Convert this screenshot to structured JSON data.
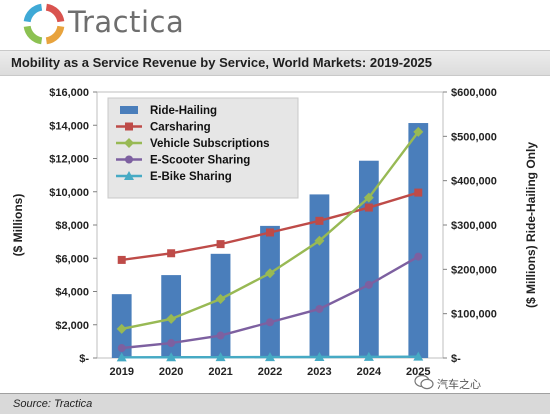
{
  "header": {
    "logo_text": "Tractica",
    "logo_colors": [
      "#e8a33d",
      "#8cc152",
      "#3fa9d6",
      "#d9534f"
    ]
  },
  "title": "Mobility as a Service Revenue by Service, World Markets: 2019-2025",
  "source": "Source: Tractica",
  "watermark": "汽车之心",
  "chart_data": {
    "type": "bar",
    "title": "Mobility as a Service Revenue by Service, World Markets: 2019-2025",
    "categories": [
      "2019",
      "2020",
      "2021",
      "2022",
      "2023",
      "2024",
      "2025"
    ],
    "left_axis": {
      "label": "($ Millions)",
      "ylim": [
        0,
        16000
      ],
      "ticks": [
        "$-",
        "$2,000",
        "$4,000",
        "$6,000",
        "$8,000",
        "$10,000",
        "$12,000",
        "$14,000",
        "$16,000"
      ]
    },
    "right_axis": {
      "label": "($ Millions) Ride-Hailing Only",
      "ylim": [
        0,
        600000
      ],
      "ticks": [
        "$-",
        "$100,000",
        "$200,000",
        "$300,000",
        "$400,000",
        "$500,000",
        "$600,000"
      ]
    },
    "series": [
      {
        "name": "Ride-Hailing",
        "type": "bar",
        "axis": "right",
        "color": "#4a7ebb",
        "values": [
          144000,
          187000,
          235000,
          298000,
          369000,
          445000,
          530000
        ]
      },
      {
        "name": "Carsharing",
        "type": "line",
        "axis": "left",
        "color": "#be4b48",
        "marker": "square",
        "values": [
          5900,
          6300,
          6850,
          7550,
          8250,
          9050,
          9950
        ]
      },
      {
        "name": "Vehicle Subscriptions",
        "type": "line",
        "axis": "left",
        "color": "#98b954",
        "marker": "diamond",
        "values": [
          1750,
          2350,
          3550,
          5100,
          7050,
          9650,
          13600
        ]
      },
      {
        "name": "E-Scooter Sharing",
        "type": "line",
        "axis": "left",
        "color": "#7d60a0",
        "marker": "circle",
        "values": [
          600,
          900,
          1350,
          2150,
          2950,
          4400,
          6100
        ]
      },
      {
        "name": "E-Bike Sharing",
        "type": "line",
        "axis": "left",
        "color": "#46aac4",
        "marker": "triangle",
        "values": [
          40,
          45,
          50,
          55,
          60,
          70,
          80
        ]
      }
    ],
    "legend_position": "top-left inside",
    "grid": false
  }
}
